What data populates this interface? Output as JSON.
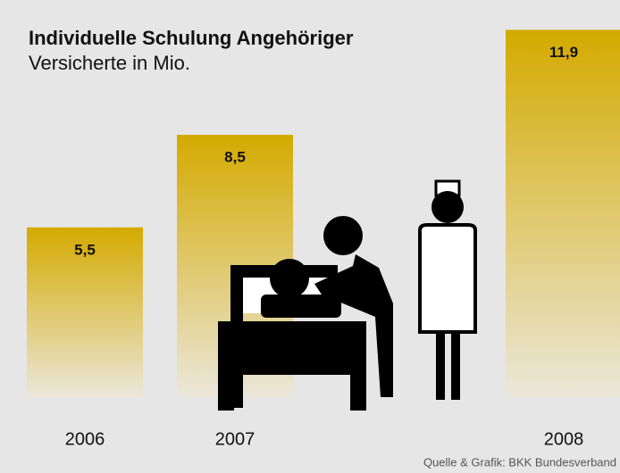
{
  "chart_data": {
    "type": "bar",
    "title": "Individuelle Schulung Angehöriger",
    "subtitle": "Versicherte in Mio.",
    "source": "Quelle & Grafik: BKK Bundesverband",
    "categories": [
      "2006",
      "2007",
      "2008"
    ],
    "values": [
      5.5,
      8.5,
      11.9
    ],
    "value_labels": [
      "5,5",
      "8,5",
      "11,9"
    ],
    "color": "#d4aa00",
    "ylim": [
      0,
      12
    ]
  }
}
